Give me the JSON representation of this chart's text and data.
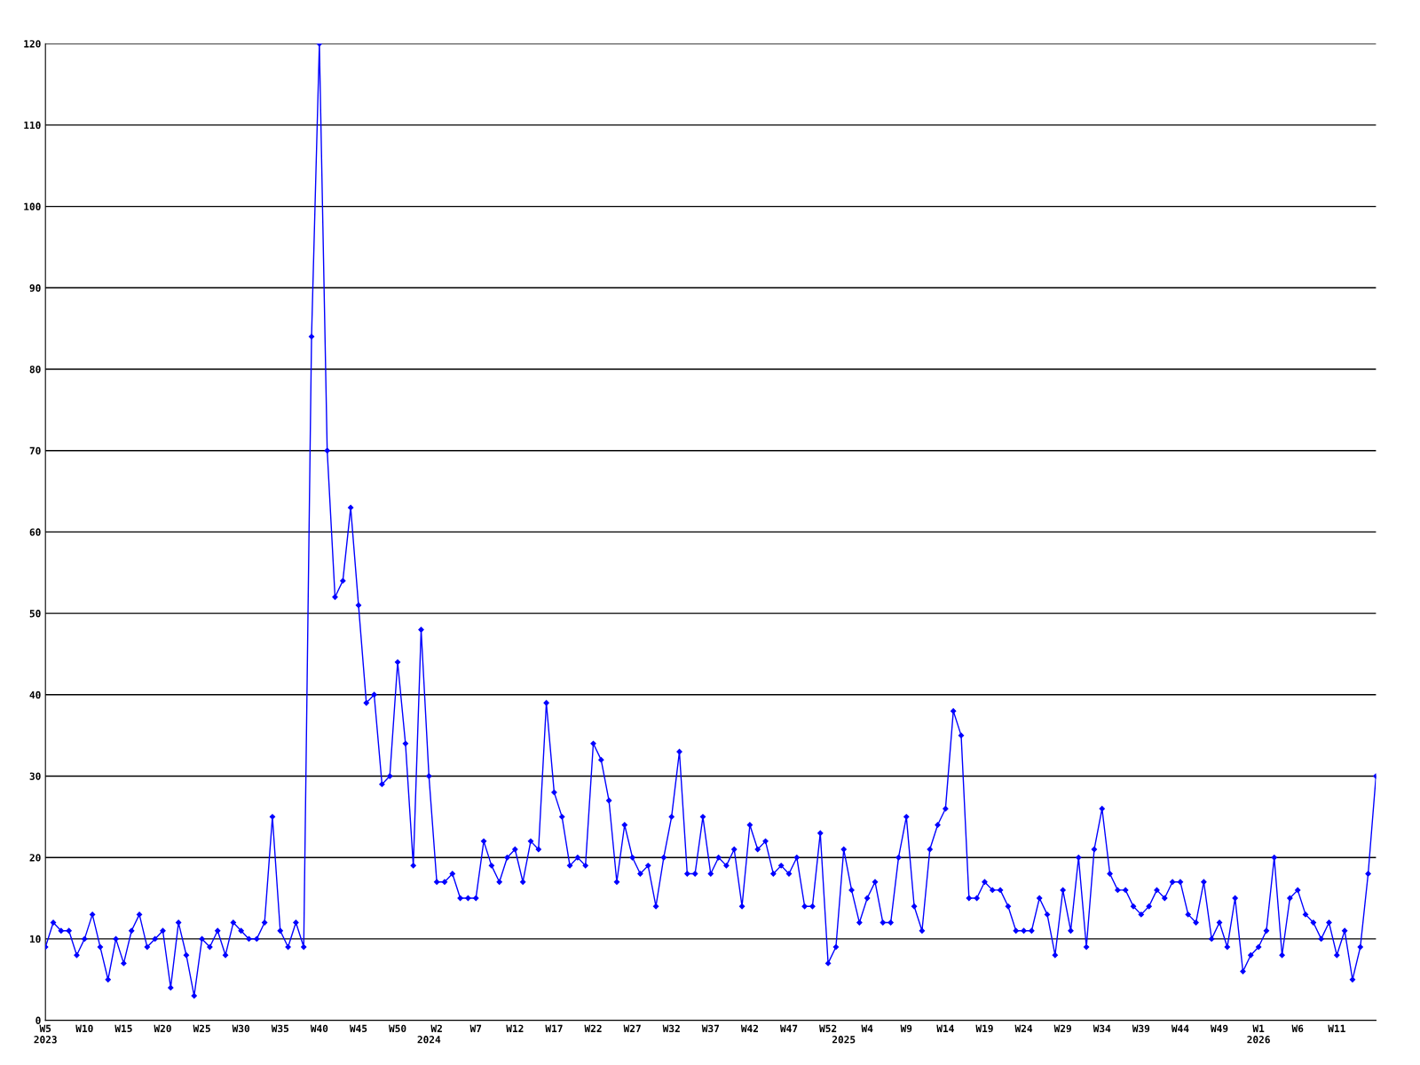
{
  "chart_data": {
    "type": "line",
    "categories": [
      "W5\n2023",
      null,
      null,
      null,
      null,
      "W10",
      null,
      null,
      null,
      null,
      "W15",
      null,
      null,
      null,
      null,
      "W20",
      null,
      null,
      null,
      null,
      "W25",
      null,
      null,
      null,
      null,
      "W30",
      null,
      null,
      null,
      null,
      "W35",
      null,
      null,
      null,
      null,
      "W40",
      null,
      null,
      null,
      null,
      "W45",
      null,
      null,
      null,
      null,
      "W50",
      null,
      null,
      null,
      "\n2024",
      "W2",
      null,
      null,
      null,
      null,
      "W7",
      null,
      null,
      null,
      null,
      "W12",
      null,
      null,
      null,
      null,
      "W17",
      null,
      null,
      null,
      null,
      "W22",
      null,
      null,
      null,
      null,
      "W27",
      null,
      null,
      null,
      null,
      "W32",
      null,
      null,
      null,
      null,
      "W37",
      null,
      null,
      null,
      null,
      "W42",
      null,
      null,
      null,
      null,
      "W47",
      null,
      null,
      null,
      null,
      "W52",
      null,
      "\n2025",
      null,
      null,
      "W4",
      null,
      null,
      null,
      null,
      "W9",
      null,
      null,
      null,
      null,
      "W14",
      null,
      null,
      null,
      null,
      "W19",
      null,
      null,
      null,
      null,
      "W24",
      null,
      null,
      null,
      null,
      "W29",
      null,
      null,
      null,
      null,
      "W34",
      null,
      null,
      null,
      null,
      "W39",
      null,
      null,
      null,
      null,
      "W44",
      null,
      null,
      null,
      null,
      "W49",
      null,
      null,
      null,
      null,
      "W1\n2026",
      null,
      null,
      null,
      null,
      "W6",
      null,
      null,
      null,
      null,
      "W11",
      null,
      null,
      null,
      null,
      null
    ],
    "series": [
      {
        "color": "#0000ff",
        "values": [
          9,
          12,
          11,
          11,
          8,
          10,
          13,
          9,
          5,
          10,
          7,
          11,
          13,
          9,
          10,
          11,
          4,
          12,
          8,
          3,
          10,
          9,
          11,
          8,
          12,
          11,
          10,
          10,
          12,
          25,
          11,
          9,
          12,
          9,
          84,
          120,
          70,
          52,
          54,
          63,
          51,
          39,
          40,
          29,
          30,
          44,
          34,
          19,
          48,
          30,
          17,
          17,
          18,
          15,
          15,
          15,
          22,
          19,
          17,
          20,
          21,
          17,
          22,
          21,
          39,
          28,
          25,
          19,
          20,
          19,
          34,
          32,
          27,
          17,
          24,
          20,
          18,
          19,
          14,
          20,
          25,
          33,
          18,
          18,
          25,
          18,
          20,
          19,
          21,
          14,
          24,
          21,
          22,
          18,
          19,
          18,
          20,
          14,
          14,
          23,
          7,
          9,
          21,
          16,
          12,
          15,
          17,
          12,
          12,
          20,
          25,
          14,
          11,
          21,
          24,
          26,
          38,
          35,
          15,
          15,
          17,
          16,
          16,
          14,
          11,
          11,
          11,
          15,
          13,
          8,
          16,
          11,
          20,
          9,
          21,
          26,
          18,
          16,
          16,
          14,
          13,
          14,
          16,
          15,
          17,
          17,
          13,
          12,
          17,
          10,
          12,
          9,
          15,
          6,
          8,
          9,
          11,
          20,
          8,
          15,
          16,
          13,
          12,
          10,
          12,
          8,
          11,
          5,
          9,
          18,
          30
        ]
      }
    ],
    "ylim": [
      0,
      120
    ],
    "yticks": [
      0,
      10,
      20,
      30,
      40,
      50,
      60,
      70,
      80,
      90,
      100,
      110,
      120
    ],
    "grid": "y",
    "marker": "diamond",
    "line_style": "solid"
  }
}
